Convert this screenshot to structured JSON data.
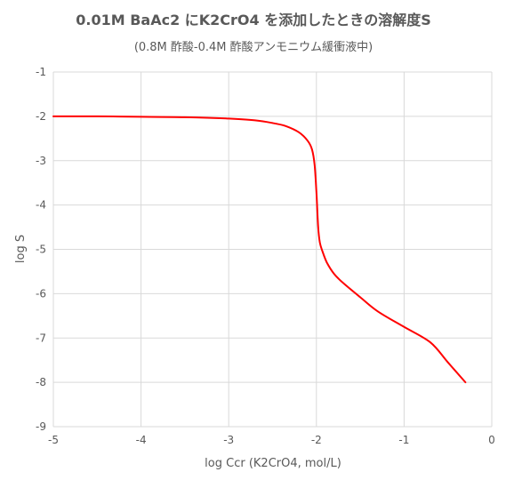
{
  "chart_data": {
    "type": "line",
    "title": "0.01M BaAc2 にK2CrO4 を添加したときの溶解度S",
    "subtitle": "(0.8M 酢酸-0.4M 酢酸アンモニウム緩衝液中)",
    "xlabel": "log Ccr (K2CrO4, mol/L)",
    "ylabel": "log S",
    "xlim": [
      -5,
      0
    ],
    "ylim": [
      -9,
      -1
    ],
    "xticks": [
      "-5",
      "-4",
      "-3",
      "-2",
      "-1",
      "0"
    ],
    "yticks": [
      "-1",
      "-2",
      "-3",
      "-4",
      "-5",
      "-6",
      "-7",
      "-8",
      "-9"
    ],
    "grid": true,
    "legend": "none",
    "series": [
      {
        "color": "#ff0000",
        "x": [
          -5.0,
          -4.5,
          -4.0,
          -3.5,
          -3.0,
          -2.7,
          -2.5,
          -2.35,
          -2.2,
          -2.1,
          -2.05,
          -2.02,
          -2.0,
          -1.98,
          -1.96,
          -1.93,
          -1.88,
          -1.8,
          -1.7,
          -1.5,
          -1.3,
          -1.0,
          -0.7,
          -0.5,
          -0.3
        ],
        "y": [
          -2.0,
          -2.0,
          -2.01,
          -2.02,
          -2.05,
          -2.09,
          -2.15,
          -2.22,
          -2.36,
          -2.55,
          -2.75,
          -3.1,
          -3.7,
          -4.5,
          -4.85,
          -5.05,
          -5.3,
          -5.55,
          -5.75,
          -6.08,
          -6.4,
          -6.75,
          -7.1,
          -7.55,
          -8.0
        ]
      }
    ]
  }
}
